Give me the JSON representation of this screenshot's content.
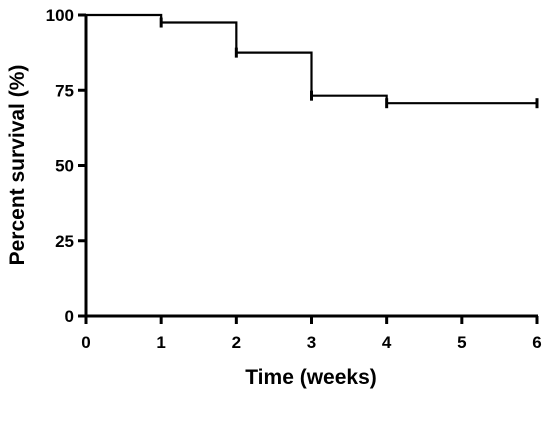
{
  "chart_data": {
    "type": "line",
    "style": "step (Kaplan-Meier survival curve) with censor ticks",
    "title": "",
    "xlabel": "Time (weeks)",
    "ylabel": "Percent survival (%)",
    "xlim": [
      0,
      6
    ],
    "ylim": [
      0,
      100
    ],
    "x_ticks": [
      0,
      1,
      2,
      3,
      4,
      5,
      6
    ],
    "y_ticks": [
      0,
      25,
      50,
      75,
      100
    ],
    "x_tick_labels": [
      "0",
      "1",
      "2",
      "3",
      "4",
      "5",
      "6"
    ],
    "y_tick_labels": [
      "0",
      "25",
      "50",
      "75",
      "100"
    ],
    "grid": false,
    "legend": "none",
    "series": [
      {
        "x": [
          0,
          1,
          2,
          3,
          4,
          6
        ],
        "y": [
          100,
          97.5,
          87.5,
          73.2,
          70.7,
          70.7
        ],
        "censored": [
          {
            "x": 1,
            "y": 97.5
          },
          {
            "x": 2,
            "y": 87.5
          },
          {
            "x": 3,
            "y": 73.2
          },
          {
            "x": 4,
            "y": 70.7
          },
          {
            "x": 6,
            "y": 70.7
          }
        ]
      }
    ],
    "colors": {
      "line": "#000000",
      "axis": "#000000"
    }
  }
}
